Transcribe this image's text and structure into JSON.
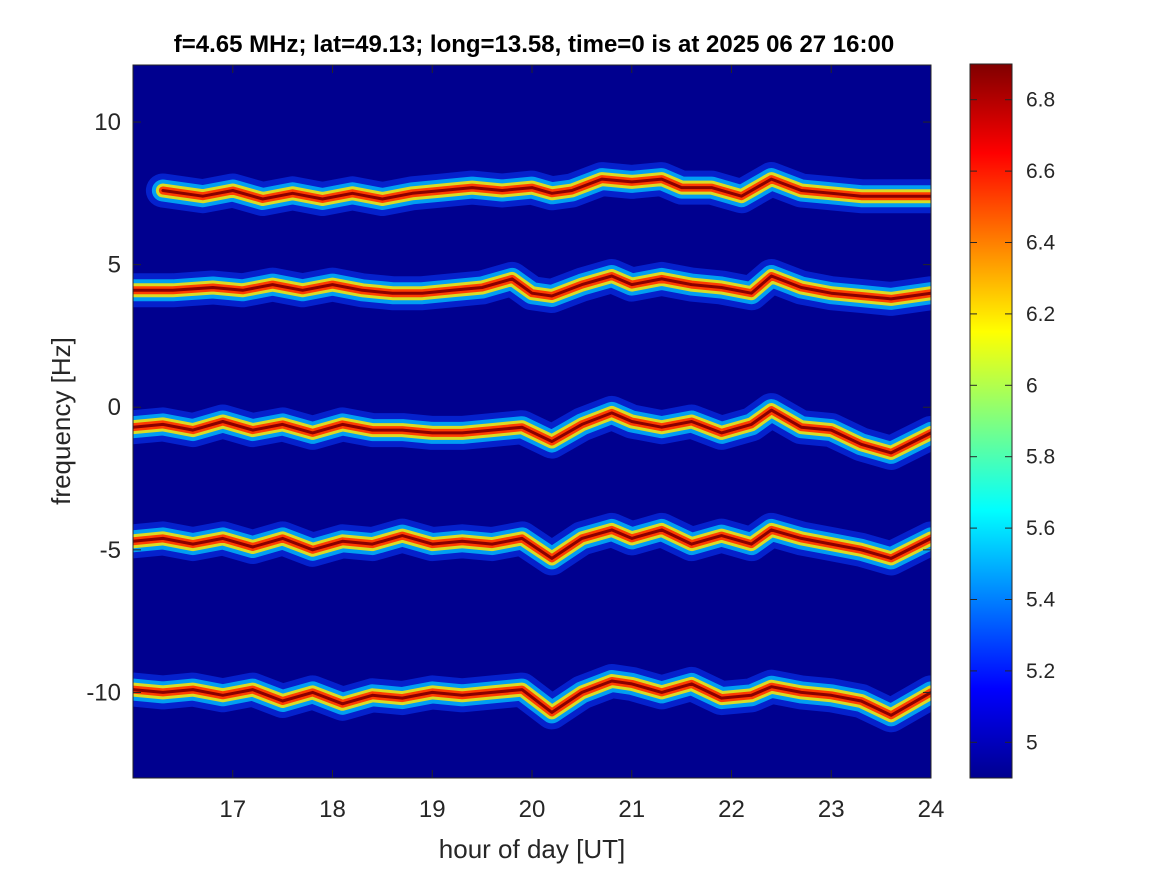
{
  "chart_data": {
    "type": "heatmap",
    "title": "f=4.65 MHz;  lat=49.13; long=13.58, time=0 is at 2025 06 27 16:00",
    "xlabel": "hour of day [UT]",
    "ylabel": "frequency [Hz]",
    "xlim": [
      16,
      24
    ],
    "ylim": [
      -13,
      12
    ],
    "xticks": [
      17,
      18,
      19,
      20,
      21,
      22,
      23,
      24
    ],
    "xtick_labels": [
      "17",
      "18",
      "19",
      "20",
      "21",
      "22",
      "23",
      "24"
    ],
    "yticks": [
      10,
      5,
      0,
      -5,
      -10
    ],
    "ytick_labels": [
      "10",
      "5",
      "0",
      "-5",
      "-10"
    ],
    "colorbar": {
      "colormap": "jet",
      "clim": [
        4.9,
        6.9
      ],
      "ticks": [
        6.8,
        6.6,
        6.4,
        6.2,
        6.0,
        5.8,
        5.6,
        5.4,
        5.2,
        5.0
      ],
      "tick_labels": [
        "6.8",
        "6.6",
        "6.4",
        "6.2",
        "6",
        "5.8",
        "5.6",
        "5.4",
        "5.2",
        "5"
      ]
    },
    "background_value": 4.95,
    "traces": [
      {
        "x": [
          16.3,
          16.7,
          17.0,
          17.3,
          17.6,
          17.9,
          18.2,
          18.5,
          18.8,
          19.1,
          19.4,
          19.7,
          20.0,
          20.2,
          20.4,
          20.7,
          21.0,
          21.3,
          21.5,
          21.8,
          22.1,
          22.4,
          22.7,
          23.0,
          23.3,
          23.6,
          24.0
        ],
        "y": [
          7.6,
          7.4,
          7.6,
          7.3,
          7.5,
          7.3,
          7.5,
          7.3,
          7.5,
          7.6,
          7.7,
          7.6,
          7.7,
          7.5,
          7.6,
          8.0,
          7.9,
          8.0,
          7.7,
          7.7,
          7.4,
          8.0,
          7.6,
          7.5,
          7.4,
          7.4,
          7.4
        ]
      },
      {
        "x": [
          16.0,
          16.4,
          16.8,
          17.1,
          17.4,
          17.7,
          18.0,
          18.3,
          18.6,
          18.9,
          19.2,
          19.5,
          19.8,
          20.0,
          20.2,
          20.5,
          20.8,
          21.0,
          21.3,
          21.6,
          21.9,
          22.2,
          22.4,
          22.7,
          23.0,
          23.3,
          23.6,
          24.0
        ],
        "y": [
          4.1,
          4.1,
          4.2,
          4.1,
          4.3,
          4.1,
          4.3,
          4.1,
          4.0,
          4.0,
          4.1,
          4.2,
          4.5,
          4.0,
          3.9,
          4.3,
          4.6,
          4.3,
          4.5,
          4.3,
          4.2,
          4.0,
          4.6,
          4.2,
          4.0,
          3.9,
          3.8,
          4.0
        ]
      },
      {
        "x": [
          16.0,
          16.3,
          16.6,
          16.9,
          17.2,
          17.5,
          17.8,
          18.1,
          18.4,
          18.7,
          19.0,
          19.3,
          19.6,
          19.9,
          20.2,
          20.5,
          20.8,
          21.0,
          21.3,
          21.6,
          21.9,
          22.2,
          22.4,
          22.7,
          23.0,
          23.3,
          23.6,
          24.0
        ],
        "y": [
          -0.7,
          -0.6,
          -0.8,
          -0.5,
          -0.8,
          -0.6,
          -0.9,
          -0.6,
          -0.8,
          -0.8,
          -0.9,
          -0.9,
          -0.8,
          -0.7,
          -1.2,
          -0.6,
          -0.2,
          -0.5,
          -0.7,
          -0.5,
          -0.9,
          -0.6,
          -0.1,
          -0.7,
          -0.8,
          -1.3,
          -1.6,
          -0.9
        ]
      },
      {
        "x": [
          16.0,
          16.3,
          16.6,
          16.9,
          17.2,
          17.5,
          17.8,
          18.1,
          18.4,
          18.7,
          19.0,
          19.3,
          19.6,
          19.9,
          20.2,
          20.5,
          20.8,
          21.0,
          21.3,
          21.6,
          21.9,
          22.2,
          22.4,
          22.7,
          23.0,
          23.3,
          23.6,
          24.0
        ],
        "y": [
          -4.7,
          -4.6,
          -4.8,
          -4.6,
          -4.9,
          -4.6,
          -5.0,
          -4.7,
          -4.8,
          -4.5,
          -4.8,
          -4.7,
          -4.8,
          -4.6,
          -5.3,
          -4.6,
          -4.3,
          -4.6,
          -4.3,
          -4.8,
          -4.5,
          -4.8,
          -4.3,
          -4.6,
          -4.8,
          -5.0,
          -5.3,
          -4.6
        ]
      },
      {
        "x": [
          16.0,
          16.3,
          16.6,
          16.9,
          17.2,
          17.5,
          17.8,
          18.1,
          18.4,
          18.7,
          19.0,
          19.3,
          19.6,
          19.9,
          20.2,
          20.5,
          20.8,
          21.0,
          21.3,
          21.6,
          21.9,
          22.2,
          22.4,
          22.7,
          23.0,
          23.3,
          23.6,
          24.0
        ],
        "y": [
          -9.9,
          -10.0,
          -9.9,
          -10.1,
          -9.9,
          -10.3,
          -10.0,
          -10.4,
          -10.1,
          -10.2,
          -10.0,
          -10.1,
          -10.0,
          -9.9,
          -10.7,
          -10.0,
          -9.6,
          -9.7,
          -10.0,
          -9.7,
          -10.2,
          -10.1,
          -9.8,
          -10.0,
          -10.1,
          -10.3,
          -10.8,
          -10.0
        ]
      }
    ]
  }
}
